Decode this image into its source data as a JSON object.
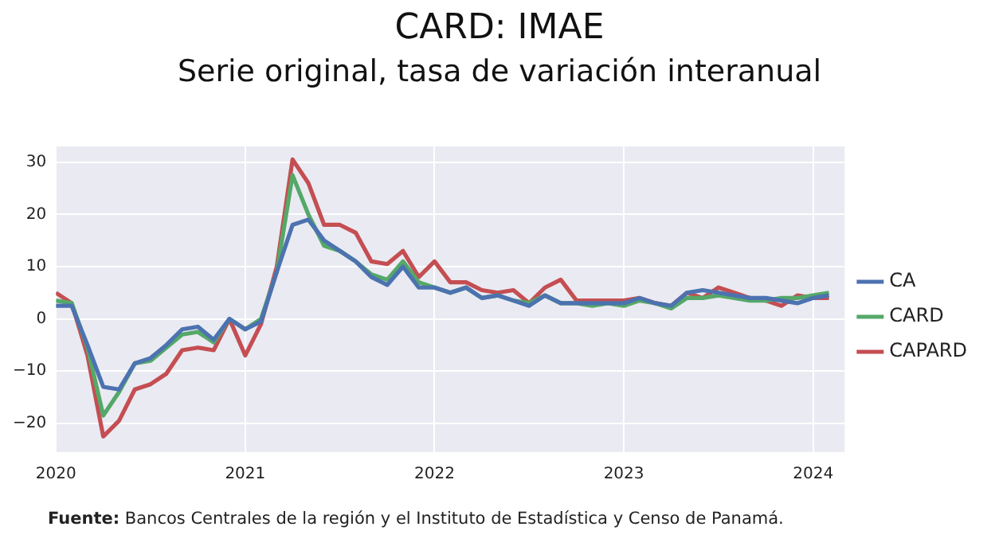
{
  "chart_data": {
    "type": "line",
    "title": "CARD: IMAE",
    "subtitle": "Serie original, tasa de variación interanual",
    "x": [
      "2020-01",
      "2020-02",
      "2020-03",
      "2020-04",
      "2020-05",
      "2020-06",
      "2020-07",
      "2020-08",
      "2020-09",
      "2020-10",
      "2020-11",
      "2020-12",
      "2021-01",
      "2021-02",
      "2021-03",
      "2021-04",
      "2021-05",
      "2021-06",
      "2021-07",
      "2021-08",
      "2021-09",
      "2021-10",
      "2021-11",
      "2021-12",
      "2022-01",
      "2022-02",
      "2022-03",
      "2022-04",
      "2022-05",
      "2022-06",
      "2022-07",
      "2022-08",
      "2022-09",
      "2022-10",
      "2022-11",
      "2022-12",
      "2023-01",
      "2023-02",
      "2023-03",
      "2023-04",
      "2023-05",
      "2023-06",
      "2023-07",
      "2023-08",
      "2023-09",
      "2023-10",
      "2023-11",
      "2023-12",
      "2024-01",
      "2024-02"
    ],
    "series": [
      {
        "name": "CA",
        "color": "#4c72b0",
        "values": [
          2.5,
          2.5,
          -5,
          -13,
          -13.5,
          -8.5,
          -7.5,
          -5,
          -2,
          -1.5,
          -4,
          0,
          -2,
          -0.5,
          9,
          18,
          19,
          15,
          13,
          11,
          8,
          6.5,
          10,
          6,
          6,
          5,
          6,
          4,
          4.5,
          3.5,
          2.5,
          4.5,
          3,
          3,
          3,
          3,
          3,
          4,
          3,
          2.5,
          5,
          5.5,
          5,
          4.5,
          4,
          4,
          3.5,
          3,
          4,
          4.5
        ]
      },
      {
        "name": "CARD",
        "color": "#55a868",
        "values": [
          3.5,
          3,
          -5.5,
          -18.5,
          -14,
          -8.5,
          -8,
          -5.5,
          -3,
          -2.5,
          -4.5,
          0,
          -2,
          0,
          9,
          27.5,
          20,
          14,
          13,
          11,
          8.5,
          7.5,
          11,
          7,
          6,
          5,
          6,
          4,
          4.5,
          3.5,
          3,
          4.5,
          3,
          3,
          2.5,
          3,
          2.5,
          3.5,
          3,
          2,
          4,
          4,
          4.5,
          4,
          3.5,
          3.5,
          4,
          4,
          4.5,
          5
        ]
      },
      {
        "name": "CAPARD",
        "color": "#c44e52",
        "values": [
          5,
          3,
          -7,
          -22.5,
          -19.5,
          -13.5,
          -12.5,
          -10.5,
          -6,
          -5.5,
          -6,
          0,
          -7,
          -1,
          10,
          30.5,
          26,
          18,
          18,
          16.5,
          11,
          10.5,
          13,
          8,
          11,
          7,
          7,
          5.5,
          5,
          5.5,
          3,
          6,
          7.5,
          3.5,
          3.5,
          3.5,
          3.5,
          4,
          3,
          2.5,
          5,
          4,
          6,
          5,
          4,
          3.5,
          2.5,
          4.5,
          4,
          4
        ]
      }
    ],
    "xlim": [
      "2020-01",
      "2024-03"
    ],
    "xticks": [
      "2020",
      "2021",
      "2022",
      "2023",
      "2024"
    ],
    "ylim": [
      -25.5,
      33
    ],
    "yticks": [
      -20,
      -10,
      0,
      10,
      20,
      30
    ],
    "grid": true,
    "legend": "right",
    "marker": "none",
    "line_style": "solid",
    "annotations": [
      "Fuente: Bancos Centrales de la región y el Instituto de Estadística y Censo de Panamá."
    ]
  }
}
